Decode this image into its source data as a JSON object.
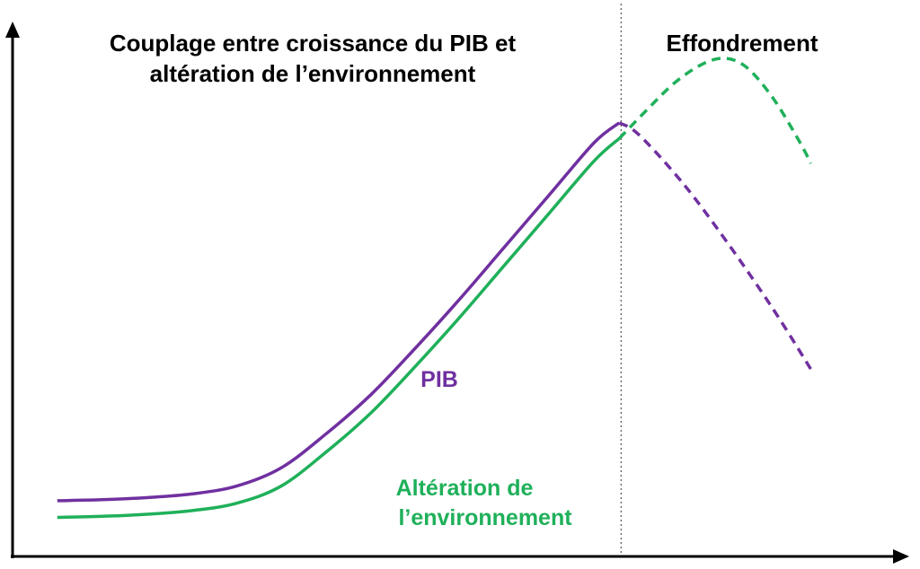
{
  "chart_data": {
    "type": "line",
    "title": "",
    "xlabel": "",
    "ylabel": "",
    "axes": {
      "x_ticks": false,
      "y_ticks": false,
      "grid": false
    },
    "phases": [
      {
        "label_line1": "Couplage entre croissance du PIB et",
        "label_line2": "altération de l’environnement",
        "x_range": [
          0,
          68
        ]
      },
      {
        "label": "Effondrement",
        "x_range": [
          68,
          100
        ]
      }
    ],
    "divider_x": 68,
    "xlim": [
      0,
      100
    ],
    "ylim": [
      0,
      100
    ],
    "series": [
      {
        "name": "PIB",
        "color": "#7030a0",
        "solid": {
          "x": [
            5,
            10,
            15,
            20,
            25,
            30,
            35,
            40,
            45,
            50,
            55,
            60,
            65,
            67.8
          ],
          "y": [
            10.7,
            10.9,
            11.3,
            12.0,
            13.5,
            17.0,
            23.5,
            31.0,
            40.0,
            49.5,
            59.5,
            69.5,
            79.5,
            83.3
          ]
        },
        "dashed": {
          "x": [
            67.8,
            70,
            75,
            80,
            85,
            89.2
          ],
          "y": [
            83.3,
            81.0,
            71.5,
            60.0,
            47.5,
            36.0
          ]
        }
      },
      {
        "name": "Altération de l’environnement",
        "label_line1": "Altération de",
        "label_line2": "l’environnement",
        "color": "#1fb05a",
        "solid": {
          "x": [
            5,
            10,
            15,
            20,
            25,
            30,
            35,
            40,
            45,
            50,
            55,
            60,
            65,
            67.8
          ],
          "y": [
            7.5,
            7.7,
            8.1,
            8.8,
            10.2,
            13.5,
            20.0,
            27.5,
            36.5,
            46.0,
            56.0,
            66.0,
            76.0,
            80.3
          ]
        },
        "dashed": {
          "x": [
            67.8,
            71,
            74,
            77,
            79.5,
            82,
            85,
            88,
            89.2
          ],
          "y": [
            80.3,
            86.0,
            91.0,
            94.5,
            95.7,
            94.0,
            88.0,
            79.5,
            75.5
          ]
        }
      }
    ]
  }
}
